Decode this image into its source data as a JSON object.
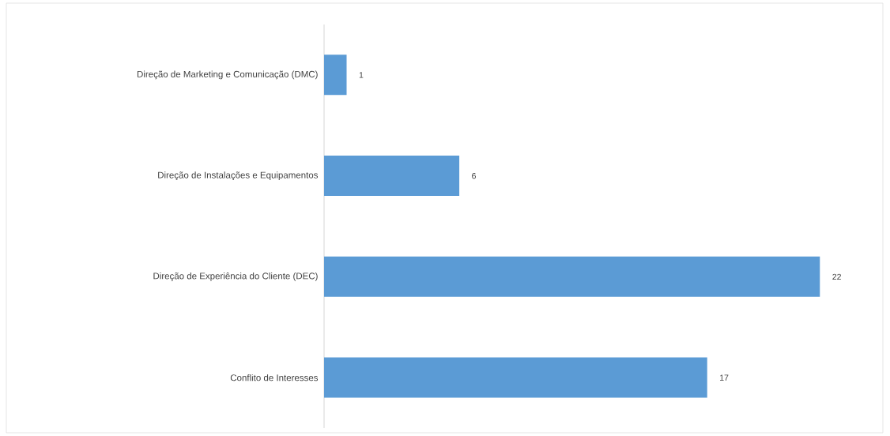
{
  "chart_data": {
    "type": "bar",
    "orientation": "horizontal",
    "categories": [
      "Direção de Marketing e Comunicação (DMC)",
      "Direção de Instalações e Equipamentos",
      "Direção de Experiência do Cliente (DEC)",
      "Conflito de Interesses"
    ],
    "values": [
      1,
      6,
      22,
      17
    ],
    "color": "#5b9bd5",
    "data_labels": true
  }
}
